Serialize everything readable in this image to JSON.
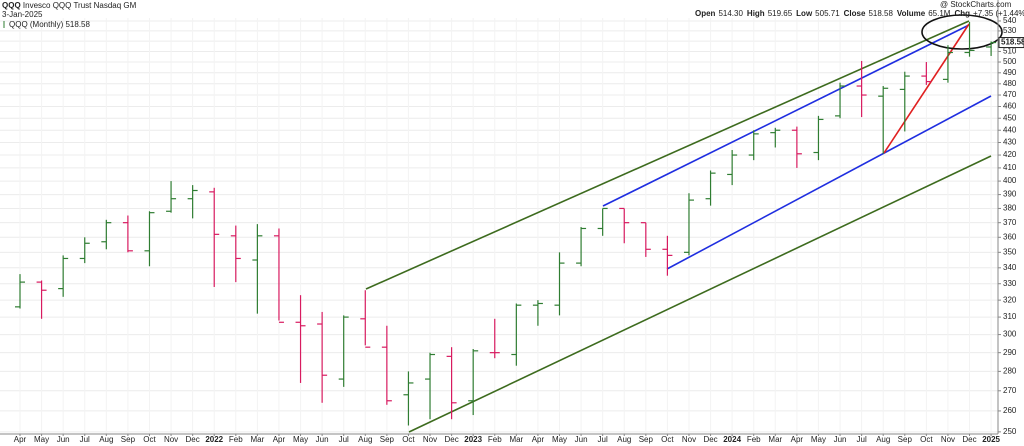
{
  "header": {
    "symbol": "QQQ",
    "name": "Invesco QQQ Trust Nasdaq GM",
    "date": "3-Jan-2025",
    "watermark": "@ StockCharts.com",
    "stats": [
      {
        "label": "Open",
        "value": "514.30"
      },
      {
        "label": "High",
        "value": "519.65"
      },
      {
        "label": "Low",
        "value": "505.71"
      },
      {
        "label": "Close",
        "value": "518.58"
      },
      {
        "label": "Volume",
        "value": "65.1M"
      },
      {
        "label": "Chg",
        "value": "+7.35 (+1.44%)"
      }
    ]
  },
  "chart_data": {
    "type": "ohlc",
    "log_scale": true,
    "grid": true,
    "series_name": "QQQ (Monthly)",
    "last_label": "518.58",
    "up_color": "#2f7d32",
    "down_color": "#d81b60",
    "categories": [
      "Apr",
      "May",
      "Jun",
      "Jul",
      "Aug",
      "Sep",
      "Oct",
      "Nov",
      "Dec",
      "2022",
      "Feb",
      "Mar",
      "Apr",
      "May",
      "Jun",
      "Jul",
      "Aug",
      "Sep",
      "Oct",
      "Nov",
      "Dec",
      "2023",
      "Feb",
      "Mar",
      "Apr",
      "May",
      "Jun",
      "Jul",
      "Aug",
      "Sep",
      "Oct",
      "Nov",
      "Dec",
      "2024",
      "Feb",
      "Mar",
      "Apr",
      "May",
      "Jun",
      "Jul",
      "Aug",
      "Sep",
      "Oct",
      "Nov",
      "Dec",
      "2025"
    ],
    "open": [
      316,
      331,
      327,
      346,
      357,
      370,
      351,
      378,
      387,
      392,
      361,
      345,
      361,
      307,
      306,
      276,
      309,
      293,
      268,
      276,
      288,
      265,
      290,
      289,
      317,
      317,
      343,
      366,
      380,
      370,
      352,
      350,
      387,
      405,
      420,
      438,
      440,
      422,
      452,
      478,
      469,
      475,
      487,
      484,
      509,
      514.3
    ],
    "high": [
      336,
      332,
      348,
      360,
      372,
      375,
      378,
      400,
      397,
      395,
      368,
      369,
      366,
      323,
      313,
      311,
      326,
      305,
      280,
      290,
      293,
      292,
      309,
      318,
      320,
      350,
      367,
      380,
      380,
      370,
      361,
      391,
      408,
      424,
      440,
      442,
      443,
      452,
      481,
      501,
      478,
      491,
      500,
      516,
      539,
      519.65
    ],
    "low": [
      315,
      309,
      322,
      343,
      352,
      350,
      341,
      377,
      373,
      328,
      331,
      312,
      308,
      274,
      264,
      272,
      294,
      263,
      253,
      256,
      256,
      258,
      287,
      283,
      305,
      311,
      341,
      361,
      356,
      347,
      335,
      348,
      382,
      397,
      416,
      426,
      410,
      416,
      450,
      451,
      421,
      439,
      479,
      481,
      505,
      505.71
    ],
    "close": [
      331,
      326,
      346,
      356,
      370,
      351,
      377,
      387,
      393,
      362,
      346,
      361,
      307,
      305,
      278,
      310,
      293,
      265,
      274,
      289,
      264,
      291,
      290,
      317,
      318,
      343,
      366,
      380,
      370,
      352,
      348,
      386,
      406,
      420,
      437,
      440,
      421,
      449,
      478,
      470,
      476,
      487,
      482,
      509,
      511,
      518.58
    ],
    "ylim": [
      249,
      543
    ],
    "yticks": [
      250,
      260,
      270,
      280,
      290,
      300,
      310,
      320,
      330,
      340,
      350,
      360,
      370,
      380,
      390,
      400,
      410,
      420,
      430,
      440,
      450,
      460,
      470,
      480,
      490,
      500,
      510,
      520,
      530,
      540
    ]
  }
}
